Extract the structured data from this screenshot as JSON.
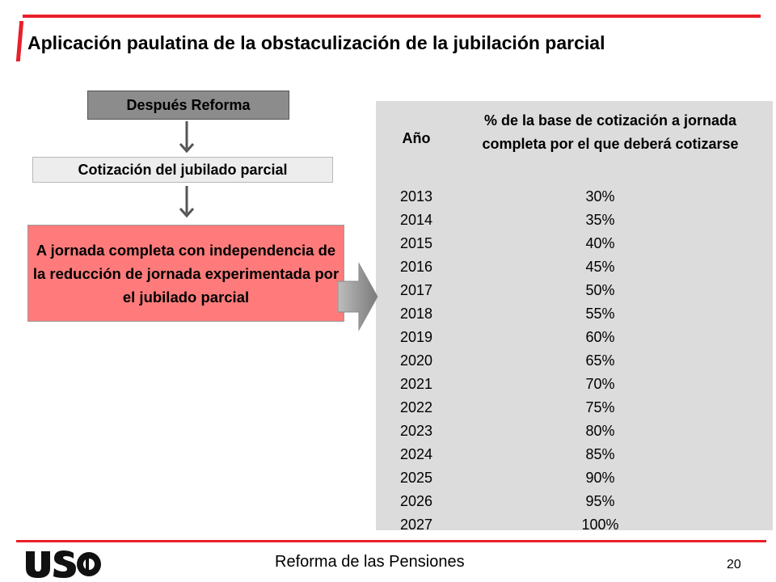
{
  "slide": {
    "title": "Aplicación paulatina de la obstaculización de la jubilación parcial"
  },
  "flow": {
    "after_reform": "Después Reforma",
    "contribution": "Cotización del jubilado parcial",
    "full_time": "A jornada completa con independencia de la reducción de jornada experimentada por el jubilado parcial"
  },
  "table": {
    "col_year": "Año",
    "col_pct": "% de la base de cotización a jornada completa por el que deberá cotizarse",
    "rows": [
      {
        "year": "2013",
        "pct": "30%"
      },
      {
        "year": "2014",
        "pct": "35%"
      },
      {
        "year": "2015",
        "pct": "40%"
      },
      {
        "year": "2016",
        "pct": "45%"
      },
      {
        "year": "2017",
        "pct": "50%"
      },
      {
        "year": "2018",
        "pct": "55%"
      },
      {
        "year": "2019",
        "pct": "60%"
      },
      {
        "year": "2020",
        "pct": "65%"
      },
      {
        "year": "2021",
        "pct": "70%"
      },
      {
        "year": "2022",
        "pct": "75%"
      },
      {
        "year": "2023",
        "pct": "80%"
      },
      {
        "year": "2024",
        "pct": "85%"
      },
      {
        "year": "2025",
        "pct": "90%"
      },
      {
        "year": "2026",
        "pct": "95%"
      },
      {
        "year": "2027",
        "pct": "100%"
      }
    ]
  },
  "footer": {
    "logo": "USO",
    "text": "Reforma de las Pensiones",
    "page": "20"
  },
  "colors": {
    "accent_red": "#e8202a",
    "highlight_box": "#ff7b7b",
    "header_box": "#8c8c8c",
    "table_bg": "#dcdcdc"
  }
}
